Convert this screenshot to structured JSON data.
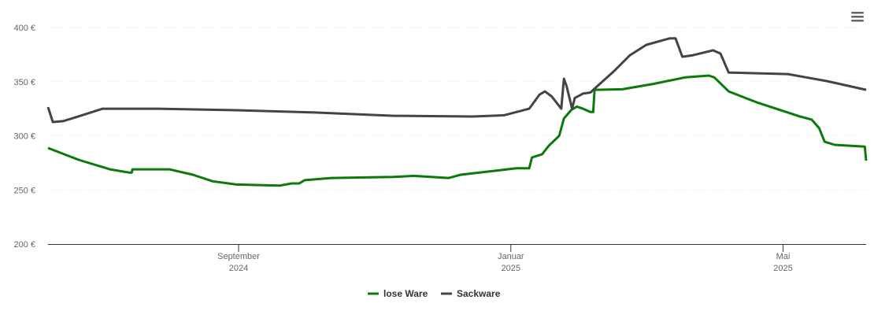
{
  "chart_data": {
    "type": "line",
    "xlim": [
      6.2,
      18.22
    ],
    "xticks": [
      {
        "value": 9,
        "label": [
          "September",
          "2024"
        ]
      },
      {
        "value": 13,
        "label": [
          "Januar",
          "2025"
        ]
      },
      {
        "value": 17,
        "label": [
          "Mai",
          "2025"
        ]
      }
    ],
    "ylim": [
      200,
      400
    ],
    "yticks": [
      {
        "value": 200,
        "label": "200 €"
      },
      {
        "value": 250,
        "label": "250 €"
      },
      {
        "value": 300,
        "label": "300 €"
      },
      {
        "value": 350,
        "label": "350 €"
      },
      {
        "value": 400,
        "label": "400 €"
      }
    ],
    "grid": true,
    "legend": "bottom",
    "series": [
      {
        "name": "lose Ware",
        "color": "#0a7a0a",
        "x": [
          6.2,
          6.65,
          7.11,
          7.4,
          7.43,
          7.44,
          7.98,
          8.33,
          8.62,
          8.97,
          9.6,
          9.78,
          9.89,
          9.97,
          10.36,
          11.28,
          11.57,
          12.09,
          12.26,
          12.67,
          13.08,
          13.27,
          13.31,
          13.46,
          13.56,
          13.71,
          13.78,
          13.89,
          13.97,
          14.06,
          14.17,
          14.21,
          14.23,
          14.64,
          15.1,
          15.56,
          15.91,
          15.99,
          16.2,
          16.61,
          17.07,
          17.24,
          17.42,
          17.53,
          17.61,
          17.76,
          18.2,
          18.22
        ],
        "values": [
          288.7,
          277.8,
          269,
          266,
          266,
          269,
          269,
          264,
          258,
          255,
          254,
          256,
          256,
          259,
          261,
          262,
          263,
          261,
          264,
          267,
          270,
          270,
          280,
          283,
          291,
          300,
          316,
          324,
          327,
          325,
          322,
          322,
          342.5,
          343,
          348,
          354,
          355.6,
          354,
          341,
          331,
          321.5,
          318,
          315,
          307,
          294.5,
          291.6,
          290,
          277
        ]
      },
      {
        "name": "Sackware",
        "color": "#434348",
        "x": [
          6.2,
          6.27,
          6.42,
          6.65,
          7.0,
          7.81,
          8.97,
          10.12,
          11.28,
          12.44,
          12.9,
          13.27,
          13.42,
          13.5,
          13.6,
          13.74,
          13.78,
          13.82,
          13.9,
          13.94,
          14.06,
          14.17,
          14.29,
          14.52,
          14.75,
          14.99,
          15.33,
          15.42,
          15.52,
          15.68,
          15.97,
          16.08,
          16.2,
          17.07,
          17.65,
          18.22
        ],
        "values": [
          326.5,
          312.7,
          313.5,
          318,
          325,
          325,
          323.6,
          321.5,
          318.5,
          317.8,
          319,
          325,
          338,
          341,
          336.4,
          325,
          352.7,
          345.5,
          325,
          335,
          339,
          340,
          347,
          360,
          374.5,
          384,
          390,
          390,
          373,
          374.5,
          379,
          376,
          358.5,
          357,
          350.5,
          342.5
        ]
      }
    ]
  }
}
